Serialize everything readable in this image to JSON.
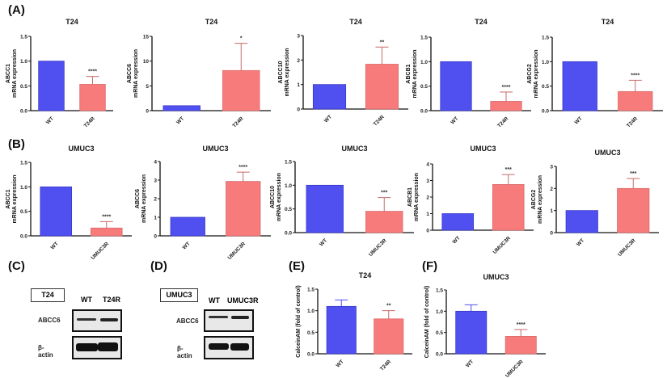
{
  "panel_labels": {
    "A": "(A)",
    "B": "(B)",
    "C": "(C)",
    "D": "(D)",
    "E": "(E)",
    "F": "(F)"
  },
  "colors": {
    "control": "#5050f0",
    "resistant": "#f87b7b",
    "resistant_error": "#c86a6a"
  },
  "chart_data": [
    {
      "id": "A1",
      "type": "bar",
      "title": "T24",
      "ylabel": [
        "ABCC1",
        "mRNA expression"
      ],
      "categories": [
        "WT",
        "T24R"
      ],
      "values": [
        1.0,
        0.53
      ],
      "errors": [
        0,
        0.16
      ],
      "significance": [
        "",
        "****"
      ],
      "ylim": [
        0,
        1.5
      ],
      "yticks": [
        0,
        0.5,
        1.0,
        1.5
      ],
      "ytick_labels": [
        "0.0",
        "0.5",
        "1.0",
        "1.5"
      ]
    },
    {
      "id": "A2",
      "type": "bar",
      "title": "T24",
      "ylabel": [
        "ABCC6",
        "mRNA expression"
      ],
      "categories": [
        "WT",
        "T24R"
      ],
      "values": [
        1.0,
        8.1
      ],
      "errors": [
        0,
        5.5
      ],
      "significance": [
        "",
        "*"
      ],
      "ylim": [
        0,
        15
      ],
      "yticks": [
        0,
        5,
        10,
        15
      ],
      "ytick_labels": [
        "0",
        "5",
        "10",
        "15"
      ]
    },
    {
      "id": "A3",
      "type": "bar",
      "title": "T24",
      "ylabel": [
        "ABCC10",
        "mRNA expression"
      ],
      "categories": [
        "WT",
        "T24R"
      ],
      "values": [
        1.0,
        1.83
      ],
      "errors": [
        0,
        0.7
      ],
      "significance": [
        "",
        "**"
      ],
      "ylim": [
        0,
        3
      ],
      "yticks": [
        0,
        1,
        2,
        3
      ],
      "ytick_labels": [
        "0",
        "1",
        "2",
        "3"
      ]
    },
    {
      "id": "A4",
      "type": "bar",
      "title": "T24",
      "ylabel": [
        "ABCB1",
        "mRNA expression"
      ],
      "categories": [
        "WT",
        "T24R"
      ],
      "values": [
        1.0,
        0.19
      ],
      "errors": [
        0,
        0.19
      ],
      "significance": [
        "",
        "****"
      ],
      "ylim": [
        0,
        1.5
      ],
      "yticks": [
        0,
        0.5,
        1.0,
        1.5
      ],
      "ytick_labels": [
        "0.0",
        "0.5",
        "1.0",
        "1.5"
      ]
    },
    {
      "id": "A5",
      "type": "bar",
      "title": "T24",
      "ylabel": [
        "ABCG2",
        "mRNA expression"
      ],
      "categories": [
        "WT",
        "T24R"
      ],
      "values": [
        1.0,
        0.39
      ],
      "errors": [
        0,
        0.23
      ],
      "significance": [
        "",
        "****"
      ],
      "ylim": [
        0,
        1.5
      ],
      "yticks": [
        0,
        0.5,
        1.0,
        1.5
      ],
      "ytick_labels": [
        "0.0",
        "0.5",
        "1.0",
        "1.5"
      ]
    },
    {
      "id": "B1",
      "type": "bar",
      "title": "UMUC3",
      "ylabel": [
        "ABCC1",
        "mRNA expression"
      ],
      "categories": [
        "WT",
        "UMUC3R"
      ],
      "values": [
        1.0,
        0.16
      ],
      "errors": [
        0,
        0.13
      ],
      "significance": [
        "",
        "****"
      ],
      "ylim": [
        0,
        1.5
      ],
      "yticks": [
        0,
        0.5,
        1.0,
        1.5
      ],
      "ytick_labels": [
        "0.0",
        "0.5",
        "1.0",
        "1.5"
      ]
    },
    {
      "id": "B2",
      "type": "bar",
      "title": "UMUC3",
      "ylabel": [
        "ABCC6",
        "mRNA expression"
      ],
      "categories": [
        "WT",
        "UMUC3R"
      ],
      "values": [
        1.0,
        2.93
      ],
      "errors": [
        0,
        0.5
      ],
      "significance": [
        "",
        "****"
      ],
      "ylim": [
        0,
        4
      ],
      "yticks": [
        0,
        1,
        2,
        3,
        4
      ],
      "ytick_labels": [
        "0",
        "1",
        "2",
        "3",
        "4"
      ]
    },
    {
      "id": "B3",
      "type": "bar",
      "title": "UMUC3",
      "ylabel": [
        "ABCC10",
        "mRNA expression"
      ],
      "categories": [
        "WT",
        "UMUC3R"
      ],
      "values": [
        1.0,
        0.45
      ],
      "errors": [
        0,
        0.29
      ],
      "significance": [
        "",
        "***"
      ],
      "ylim": [
        0,
        1.5
      ],
      "yticks": [
        0,
        0.5,
        1.0,
        1.5
      ],
      "ytick_labels": [
        "0.0",
        "0.5",
        "1.0",
        "1.5"
      ]
    },
    {
      "id": "B4",
      "type": "bar",
      "title": "UMUC3",
      "ylabel": [
        "ABCB1",
        "mRNA expression"
      ],
      "categories": [
        "WT",
        "UMUC3R"
      ],
      "values": [
        1.0,
        2.76
      ],
      "errors": [
        0,
        0.6
      ],
      "significance": [
        "",
        "***"
      ],
      "ylim": [
        0,
        4
      ],
      "yticks": [
        0,
        1,
        2,
        3,
        4
      ],
      "ytick_labels": [
        "0",
        "1",
        "2",
        "3",
        "4"
      ]
    },
    {
      "id": "B5",
      "type": "bar",
      "title": "UMUC3",
      "ylabel": [
        "ABCG2",
        "mRNA expression"
      ],
      "categories": [
        "WT",
        "UMUC3R"
      ],
      "values": [
        1.0,
        2.0
      ],
      "errors": [
        0,
        0.45
      ],
      "significance": [
        "",
        "***"
      ],
      "ylim": [
        0,
        3
      ],
      "yticks": [
        0,
        1,
        2,
        3
      ],
      "ytick_labels": [
        "0",
        "1",
        "2",
        "3"
      ]
    },
    {
      "id": "E",
      "type": "bar",
      "title": "T24",
      "ylabel": [
        "CalceinAM (fold of control)"
      ],
      "categories": [
        "WT",
        "T24R"
      ],
      "values": [
        1.1,
        0.81
      ],
      "errors": [
        0.15,
        0.19
      ],
      "significance": [
        "",
        "**"
      ],
      "ylim": [
        0,
        1.5
      ],
      "yticks": [
        0,
        0.5,
        1.0,
        1.5
      ],
      "ytick_labels": [
        "0.0",
        "0.5",
        "1.0",
        "1.5"
      ]
    },
    {
      "id": "F",
      "type": "bar",
      "title": "UMUC3",
      "ylabel": [
        "CalceinAM (fold of control)"
      ],
      "categories": [
        "WT",
        "UMUC3R"
      ],
      "values": [
        1.0,
        0.41
      ],
      "errors": [
        0.15,
        0.16
      ],
      "significance": [
        "",
        "****"
      ],
      "ylim": [
        0,
        1.5
      ],
      "yticks": [
        0,
        0.5,
        1.0,
        1.5
      ],
      "ytick_labels": [
        "0.0",
        "0.5",
        "1.0",
        "1.5"
      ]
    }
  ],
  "blots": {
    "C": {
      "cell_line": "T24",
      "lanes": [
        "WT",
        "T24R"
      ],
      "rows": [
        "ABCC6",
        "β-actin"
      ]
    },
    "D": {
      "cell_line": "UMUC3",
      "lanes": [
        "WT",
        "UMUC3R"
      ],
      "rows": [
        "ABCC6",
        "β-actin"
      ]
    }
  }
}
